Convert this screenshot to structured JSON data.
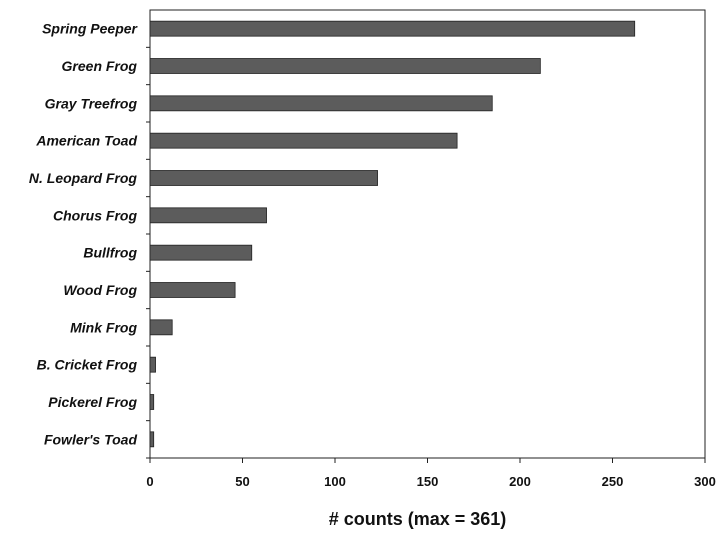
{
  "chart_data": {
    "type": "bar",
    "orientation": "horizontal",
    "title": "",
    "xlabel": "# counts (max = 361)",
    "ylabel": "",
    "xlim": [
      0,
      300
    ],
    "x_ticks": [
      0,
      50,
      100,
      150,
      200,
      250,
      300
    ],
    "categories": [
      "Spring Peeper",
      "Green Frog",
      "Gray Treefrog",
      "American Toad",
      "N. Leopard Frog",
      "Chorus Frog",
      "Bullfrog",
      "Wood Frog",
      "Mink Frog",
      "B. Cricket Frog",
      "Pickerel Frog",
      "Fowler's Toad"
    ],
    "values": [
      262,
      211,
      185,
      166,
      123,
      63,
      55,
      46,
      12,
      3,
      2,
      2
    ],
    "grid": false,
    "legend": "none",
    "bar_color": "#5c5c5c",
    "axis_color": "#222222"
  }
}
